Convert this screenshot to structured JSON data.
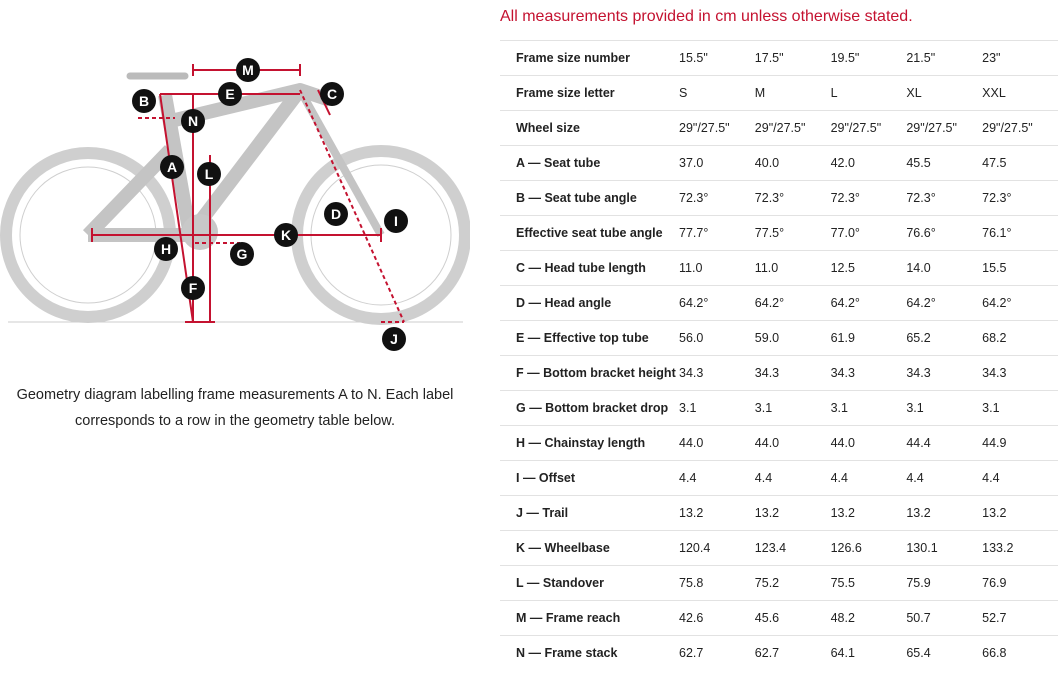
{
  "diagram": {
    "labels": [
      "M",
      "E",
      "C",
      "B",
      "N",
      "A",
      "L",
      "D",
      "I",
      "K",
      "H",
      "G",
      "F",
      "J"
    ],
    "caption": "Geometry diagram labelling frame measurements A to N. Each label corresponds to a row in the geometry table below."
  },
  "note": "All measurements provided in cm unless otherwise stated.",
  "table": {
    "rows": [
      [
        "Frame size number",
        "15.5\"",
        "17.5\"",
        "19.5\"",
        "21.5\"",
        "23\""
      ],
      [
        "Frame size letter",
        "S",
        "M",
        "L",
        "XL",
        "XXL"
      ],
      [
        "Wheel size",
        "29\"/27.5\"",
        "29\"/27.5\"",
        "29\"/27.5\"",
        "29\"/27.5\"",
        "29\"/27.5\""
      ],
      [
        "A — Seat tube",
        "37.0",
        "40.0",
        "42.0",
        "45.5",
        "47.5"
      ],
      [
        "B — Seat tube angle",
        "72.3°",
        "72.3°",
        "72.3°",
        "72.3°",
        "72.3°"
      ],
      [
        "Effective seat tube angle",
        "77.7°",
        "77.5°",
        "77.0°",
        "76.6°",
        "76.1°"
      ],
      [
        "C — Head tube length",
        "11.0",
        "11.0",
        "12.5",
        "14.0",
        "15.5"
      ],
      [
        "D — Head angle",
        "64.2°",
        "64.2°",
        "64.2°",
        "64.2°",
        "64.2°"
      ],
      [
        "E — Effective top tube",
        "56.0",
        "59.0",
        "61.9",
        "65.2",
        "68.2"
      ],
      [
        "F — Bottom bracket height",
        "34.3",
        "34.3",
        "34.3",
        "34.3",
        "34.3"
      ],
      [
        "G — Bottom bracket drop",
        "3.1",
        "3.1",
        "3.1",
        "3.1",
        "3.1"
      ],
      [
        "H — Chainstay length",
        "44.0",
        "44.0",
        "44.0",
        "44.4",
        "44.9"
      ],
      [
        "I — Offset",
        "4.4",
        "4.4",
        "4.4",
        "4.4",
        "4.4"
      ],
      [
        "J — Trail",
        "13.2",
        "13.2",
        "13.2",
        "13.2",
        "13.2"
      ],
      [
        "K — Wheelbase",
        "120.4",
        "123.4",
        "126.6",
        "130.1",
        "133.2"
      ],
      [
        "L — Standover",
        "75.8",
        "75.2",
        "75.5",
        "75.9",
        "76.9"
      ],
      [
        "M — Frame reach",
        "42.6",
        "45.6",
        "48.2",
        "50.7",
        "52.7"
      ],
      [
        "N — Frame stack",
        "62.7",
        "62.7",
        "64.1",
        "65.4",
        "66.8"
      ]
    ]
  }
}
